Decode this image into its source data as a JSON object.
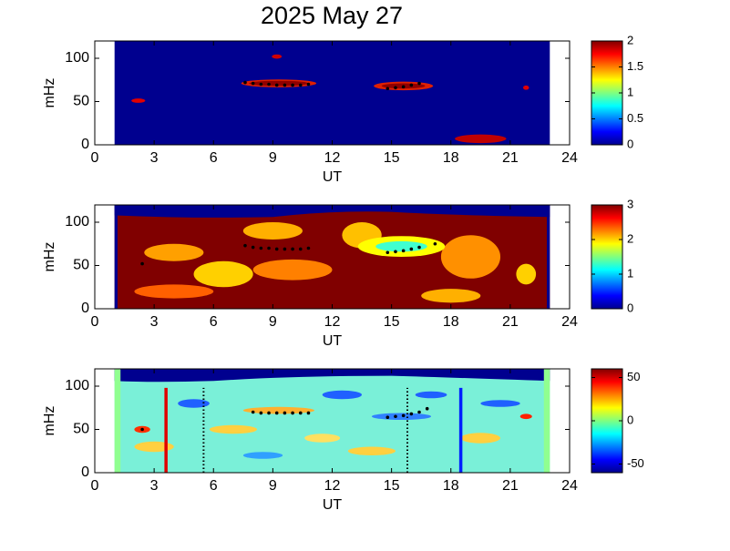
{
  "title": "2025 May 27",
  "chart_data": [
    {
      "type": "heatmap",
      "xlabel": "UT",
      "ylabel": "mHz",
      "colormap": "jet",
      "xlim": [
        0,
        24
      ],
      "xticks": [
        0,
        3,
        6,
        9,
        12,
        15,
        18,
        21,
        24
      ],
      "ylim": [
        0,
        120
      ],
      "yticks": [
        0,
        50,
        100
      ],
      "clim": [
        0,
        2
      ],
      "cticks": [
        0,
        0.5,
        1,
        1.5,
        2
      ],
      "markers": {
        "color": "#000000",
        "x": [
          7.6,
          8.0,
          8.4,
          8.8,
          9.2,
          9.6,
          10.0,
          10.4,
          10.8,
          14.8,
          15.2,
          15.6,
          16.0,
          16.4
        ],
        "values": [
          72,
          71,
          70,
          70,
          69,
          69,
          69,
          69,
          70,
          65,
          66,
          67,
          69,
          71
        ]
      },
      "vlines": []
    },
    {
      "type": "heatmap",
      "xlabel": "UT",
      "ylabel": "mHz",
      "colormap": "jet",
      "xlim": [
        0,
        24
      ],
      "xticks": [
        0,
        3,
        6,
        9,
        12,
        15,
        18,
        21,
        24
      ],
      "ylim": [
        0,
        120
      ],
      "yticks": [
        0,
        50,
        100
      ],
      "clim": [
        0,
        3
      ],
      "cticks": [
        0,
        1,
        2,
        3
      ],
      "markers": {
        "color": "#000000",
        "x": [
          2.4,
          7.6,
          8.0,
          8.4,
          8.8,
          9.2,
          9.6,
          10.0,
          10.4,
          10.8,
          14.8,
          15.2,
          15.6,
          16.0,
          16.4,
          17.2
        ],
        "values": [
          52,
          73,
          71,
          70,
          70,
          69,
          69,
          69,
          69,
          70,
          65,
          66,
          67,
          69,
          71,
          75
        ]
      },
      "vlines": []
    },
    {
      "type": "heatmap",
      "xlabel": "UT",
      "ylabel": "mHz",
      "colormap": "jet",
      "xlim": [
        0,
        24
      ],
      "xticks": [
        0,
        3,
        6,
        9,
        12,
        15,
        18,
        21,
        24
      ],
      "ylim": [
        0,
        120
      ],
      "yticks": [
        0,
        50,
        100
      ],
      "clim": [
        -60,
        60
      ],
      "cticks": [
        -50,
        0,
        50
      ],
      "markers": {
        "color": "#000000",
        "x": [
          2.4,
          8.0,
          8.4,
          8.8,
          9.2,
          9.6,
          10.0,
          10.4,
          10.8,
          14.8,
          15.2,
          15.6,
          16.0,
          16.4,
          16.8
        ],
        "values": [
          50,
          70,
          69,
          69,
          69,
          69,
          69,
          69,
          69,
          64,
          65,
          66,
          68,
          70,
          74
        ]
      },
      "vlines": [
        {
          "x": 3.6,
          "color": "#e00000",
          "style": "solid"
        },
        {
          "x": 5.5,
          "color": "#000000",
          "style": "dotted"
        },
        {
          "x": 15.8,
          "color": "#000000",
          "style": "dotted"
        },
        {
          "x": 18.5,
          "color": "#0020ff",
          "style": "solid"
        }
      ]
    }
  ]
}
